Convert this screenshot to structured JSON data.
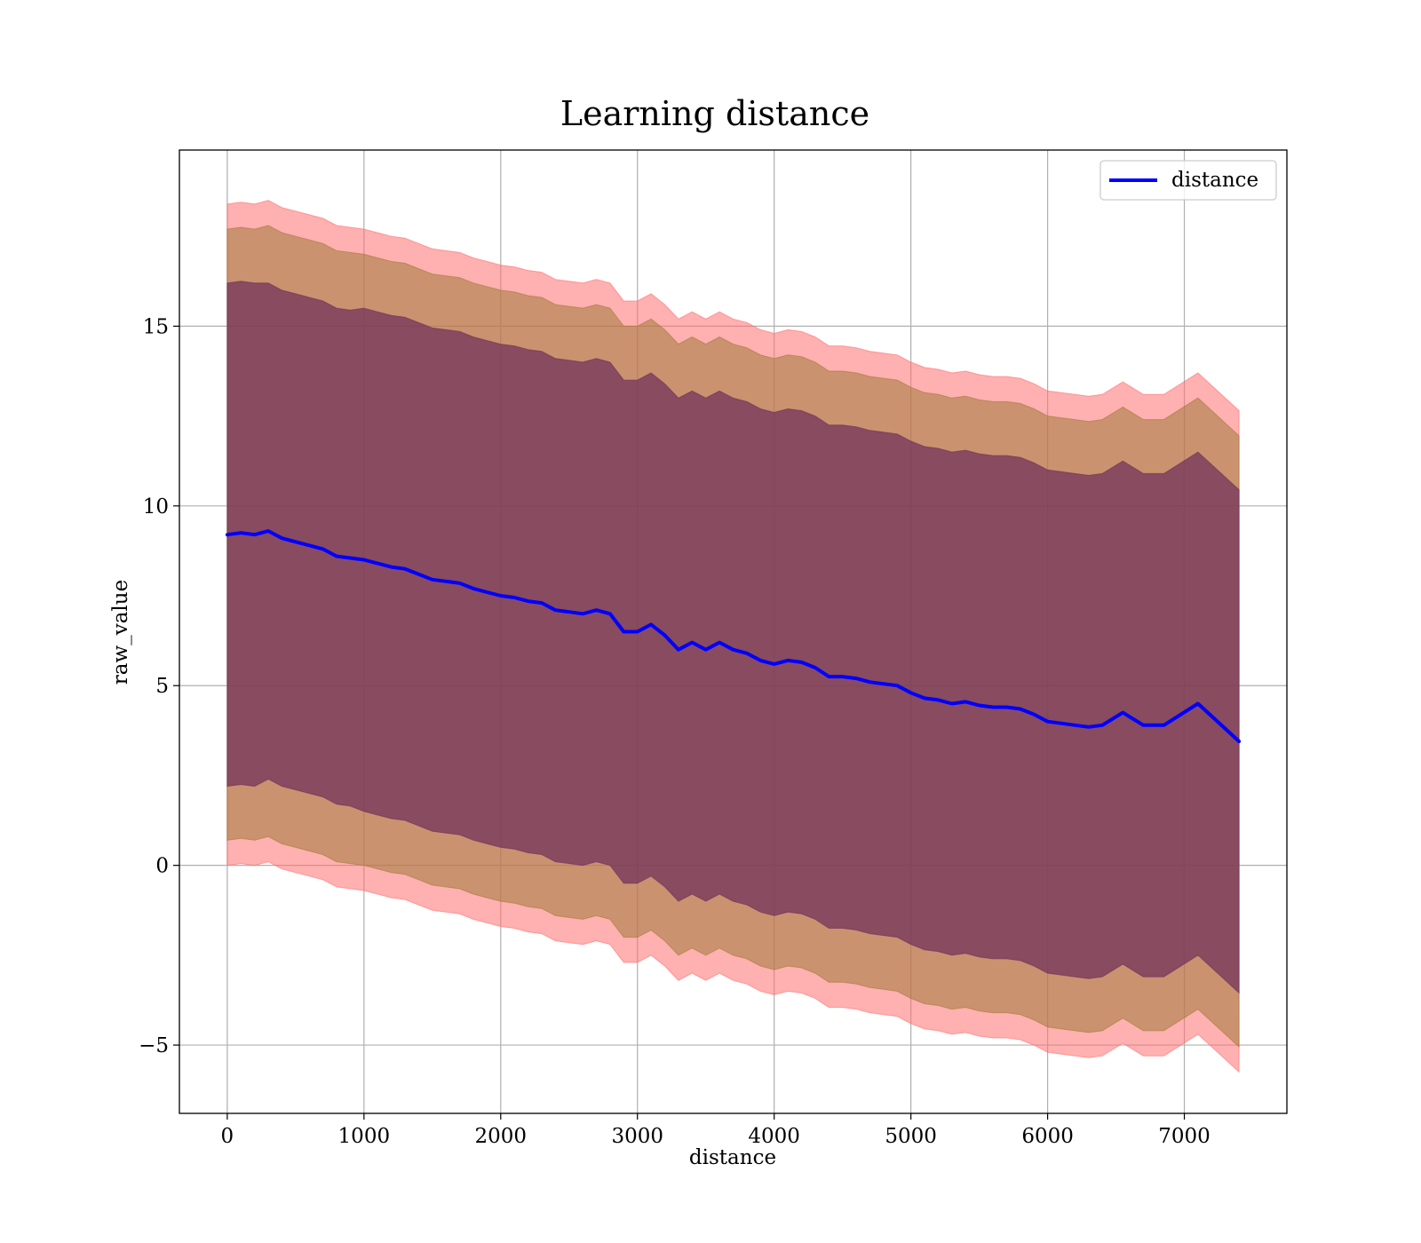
{
  "chart_data": {
    "type": "line",
    "title": "Learning distance",
    "xlabel": "distance",
    "ylabel": "raw_value",
    "xlim": [
      -350,
      7750
    ],
    "ylim": [
      -6.9,
      19.9
    ],
    "xticks": [
      0,
      1000,
      2000,
      3000,
      4000,
      5000,
      6000,
      7000
    ],
    "yticks": [
      -5,
      0,
      5,
      10,
      15
    ],
    "ytick_labels": [
      "−5",
      "0",
      "5",
      "10",
      "15"
    ],
    "grid": true,
    "legend": {
      "placement": "top-right",
      "entries": [
        "distance"
      ]
    },
    "colors": {
      "line": "#0000ff",
      "band_outer": "#ff6f6f",
      "band_middle": "#a07a3a",
      "band_inner": "#6e2f5a",
      "grid": "#b0b0b0"
    },
    "series": [
      {
        "name": "distance",
        "x": [
          0,
          100,
          200,
          300,
          400,
          500,
          600,
          700,
          800,
          900,
          1000,
          1100,
          1200,
          1300,
          1400,
          1500,
          1600,
          1700,
          1800,
          1900,
          2000,
          2100,
          2200,
          2300,
          2400,
          2500,
          2600,
          2700,
          2800,
          2900,
          3000,
          3100,
          3200,
          3300,
          3400,
          3500,
          3600,
          3700,
          3800,
          3900,
          4000,
          4100,
          4200,
          4300,
          4400,
          4500,
          4600,
          4700,
          4800,
          4900,
          5000,
          5100,
          5200,
          5300,
          5400,
          5500,
          5600,
          5700,
          5800,
          5900,
          6000,
          6100,
          6200,
          6300,
          6400,
          6550,
          6700,
          6850,
          7100,
          7400
        ],
        "y": [
          9.2,
          9.25,
          9.2,
          9.3,
          9.1,
          9.0,
          8.9,
          8.8,
          8.6,
          8.55,
          8.5,
          8.4,
          8.3,
          8.25,
          8.1,
          7.95,
          7.9,
          7.85,
          7.7,
          7.6,
          7.5,
          7.45,
          7.35,
          7.3,
          7.1,
          7.05,
          7.0,
          7.1,
          7.0,
          6.5,
          6.5,
          6.7,
          6.4,
          6.0,
          6.2,
          6.0,
          6.2,
          6.0,
          5.9,
          5.7,
          5.6,
          5.7,
          5.65,
          5.5,
          5.25,
          5.25,
          5.2,
          5.1,
          5.05,
          5.0,
          4.8,
          4.65,
          4.6,
          4.5,
          4.55,
          4.45,
          4.4,
          4.4,
          4.35,
          4.2,
          4.0,
          3.95,
          3.9,
          3.85,
          3.9,
          4.25,
          3.9,
          3.9,
          4.5,
          3.45
        ],
        "band_inner_halfwidth": [
          7.0,
          7.0,
          7.0,
          6.9,
          6.9,
          6.9,
          6.9,
          6.9,
          6.9,
          6.9,
          7.0,
          7.0,
          7.0,
          7.0,
          7.0,
          7.0,
          7.0,
          7.0,
          7.0,
          7.0,
          7.0,
          7.0,
          7.0,
          7.0,
          7.0,
          7.0,
          7.0,
          7.0,
          7.0,
          7.0,
          7.0,
          7.0,
          7.0,
          7.0,
          7.0,
          7.0,
          7.0,
          7.0,
          7.0,
          7.0,
          7.0,
          7.0,
          7.0,
          7.0,
          7.0,
          7.0,
          7.0,
          7.0,
          7.0,
          7.0,
          7.0,
          7.0,
          7.0,
          7.0,
          7.0,
          7.0,
          7.0,
          7.0,
          7.0,
          7.0,
          7.0,
          7.0,
          7.0,
          7.0,
          7.0,
          7.0,
          7.0,
          7.0,
          7.0,
          7.0
        ],
        "band_middle_halfwidth": [
          8.5,
          8.5,
          8.5,
          8.5,
          8.5,
          8.5,
          8.5,
          8.5,
          8.5,
          8.5,
          8.5,
          8.5,
          8.5,
          8.5,
          8.5,
          8.5,
          8.5,
          8.5,
          8.5,
          8.5,
          8.5,
          8.5,
          8.5,
          8.5,
          8.5,
          8.5,
          8.5,
          8.5,
          8.5,
          8.5,
          8.5,
          8.5,
          8.5,
          8.5,
          8.5,
          8.5,
          8.5,
          8.5,
          8.5,
          8.5,
          8.5,
          8.5,
          8.5,
          8.5,
          8.5,
          8.5,
          8.5,
          8.5,
          8.5,
          8.5,
          8.5,
          8.5,
          8.5,
          8.5,
          8.5,
          8.5,
          8.5,
          8.5,
          8.5,
          8.5,
          8.5,
          8.5,
          8.5,
          8.5,
          8.5,
          8.5,
          8.5,
          8.5,
          8.5,
          8.5
        ],
        "band_outer_halfwidth": [
          9.2,
          9.2,
          9.2,
          9.2,
          9.2,
          9.2,
          9.2,
          9.2,
          9.2,
          9.2,
          9.2,
          9.2,
          9.2,
          9.2,
          9.2,
          9.2,
          9.2,
          9.2,
          9.2,
          9.2,
          9.2,
          9.2,
          9.2,
          9.2,
          9.2,
          9.2,
          9.2,
          9.2,
          9.2,
          9.2,
          9.2,
          9.2,
          9.2,
          9.2,
          9.2,
          9.2,
          9.2,
          9.2,
          9.2,
          9.2,
          9.2,
          9.2,
          9.2,
          9.2,
          9.2,
          9.2,
          9.2,
          9.2,
          9.2,
          9.2,
          9.2,
          9.2,
          9.2,
          9.2,
          9.2,
          9.2,
          9.2,
          9.2,
          9.2,
          9.2,
          9.2,
          9.2,
          9.2,
          9.2,
          9.2,
          9.2,
          9.2,
          9.2,
          9.2,
          9.2
        ]
      }
    ]
  }
}
